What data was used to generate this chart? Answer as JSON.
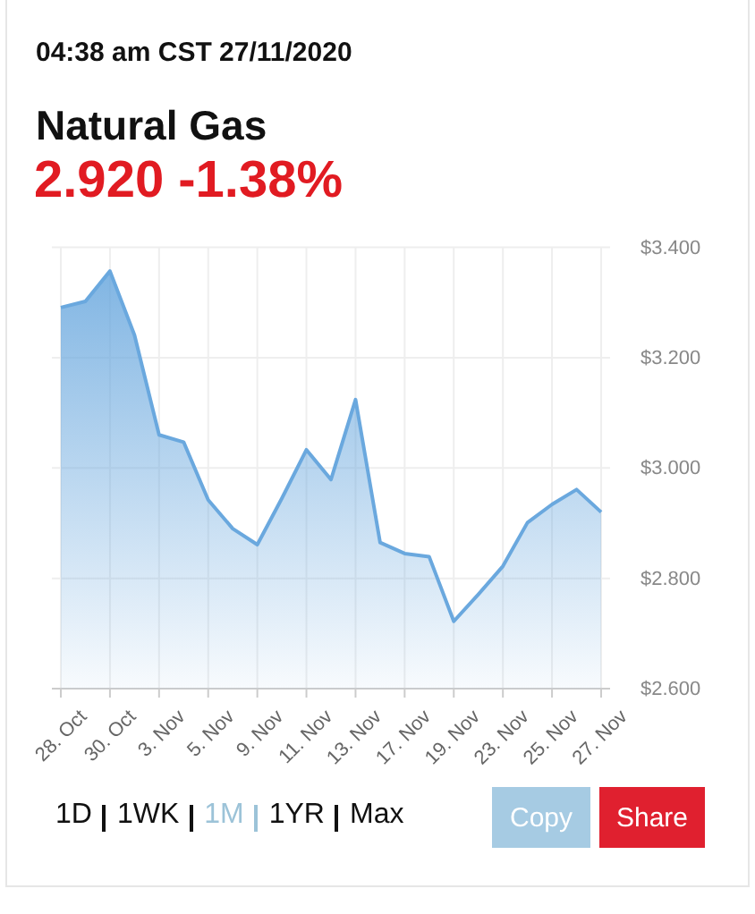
{
  "chart_data": {
    "type": "area",
    "title": "Natural Gas",
    "subtitle": "2.920 -1.38%",
    "annotations": [
      "04:38 am CST 27/11/2020",
      "1D",
      "1WK",
      "1M",
      "1YR",
      "Max",
      "Copy",
      "Share"
    ],
    "categories": [
      "28. Oct",
      null,
      "30. Oct",
      null,
      "3. Nov",
      null,
      "5. Nov",
      null,
      "9. Nov",
      null,
      "11. Nov",
      null,
      "13. Nov",
      null,
      "17. Nov",
      null,
      "19. Nov",
      null,
      "23. Nov",
      null,
      "25. Nov",
      null,
      "27. Nov"
    ],
    "series": [
      {
        "color": "#6aa8de",
        "values": [
          3.291,
          3.302,
          3.357,
          3.241,
          3.06,
          3.047,
          2.942,
          2.89,
          2.861,
          2.945,
          3.033,
          2.979,
          3.124,
          2.865,
          2.845,
          2.839,
          2.722,
          2.771,
          2.822,
          2.901,
          2.934,
          2.961,
          2.92
        ]
      }
    ],
    "ylim": [
      2.6,
      3.4
    ],
    "yticks": [
      {
        "value": 2.6,
        "label": "$2.600"
      },
      {
        "value": 2.8,
        "label": "$2.800"
      },
      {
        "value": 3.0,
        "label": "$3.000"
      },
      {
        "value": 3.2,
        "label": "$3.200"
      },
      {
        "value": 3.4,
        "label": "$3.400"
      }
    ],
    "grid": true
  }
}
